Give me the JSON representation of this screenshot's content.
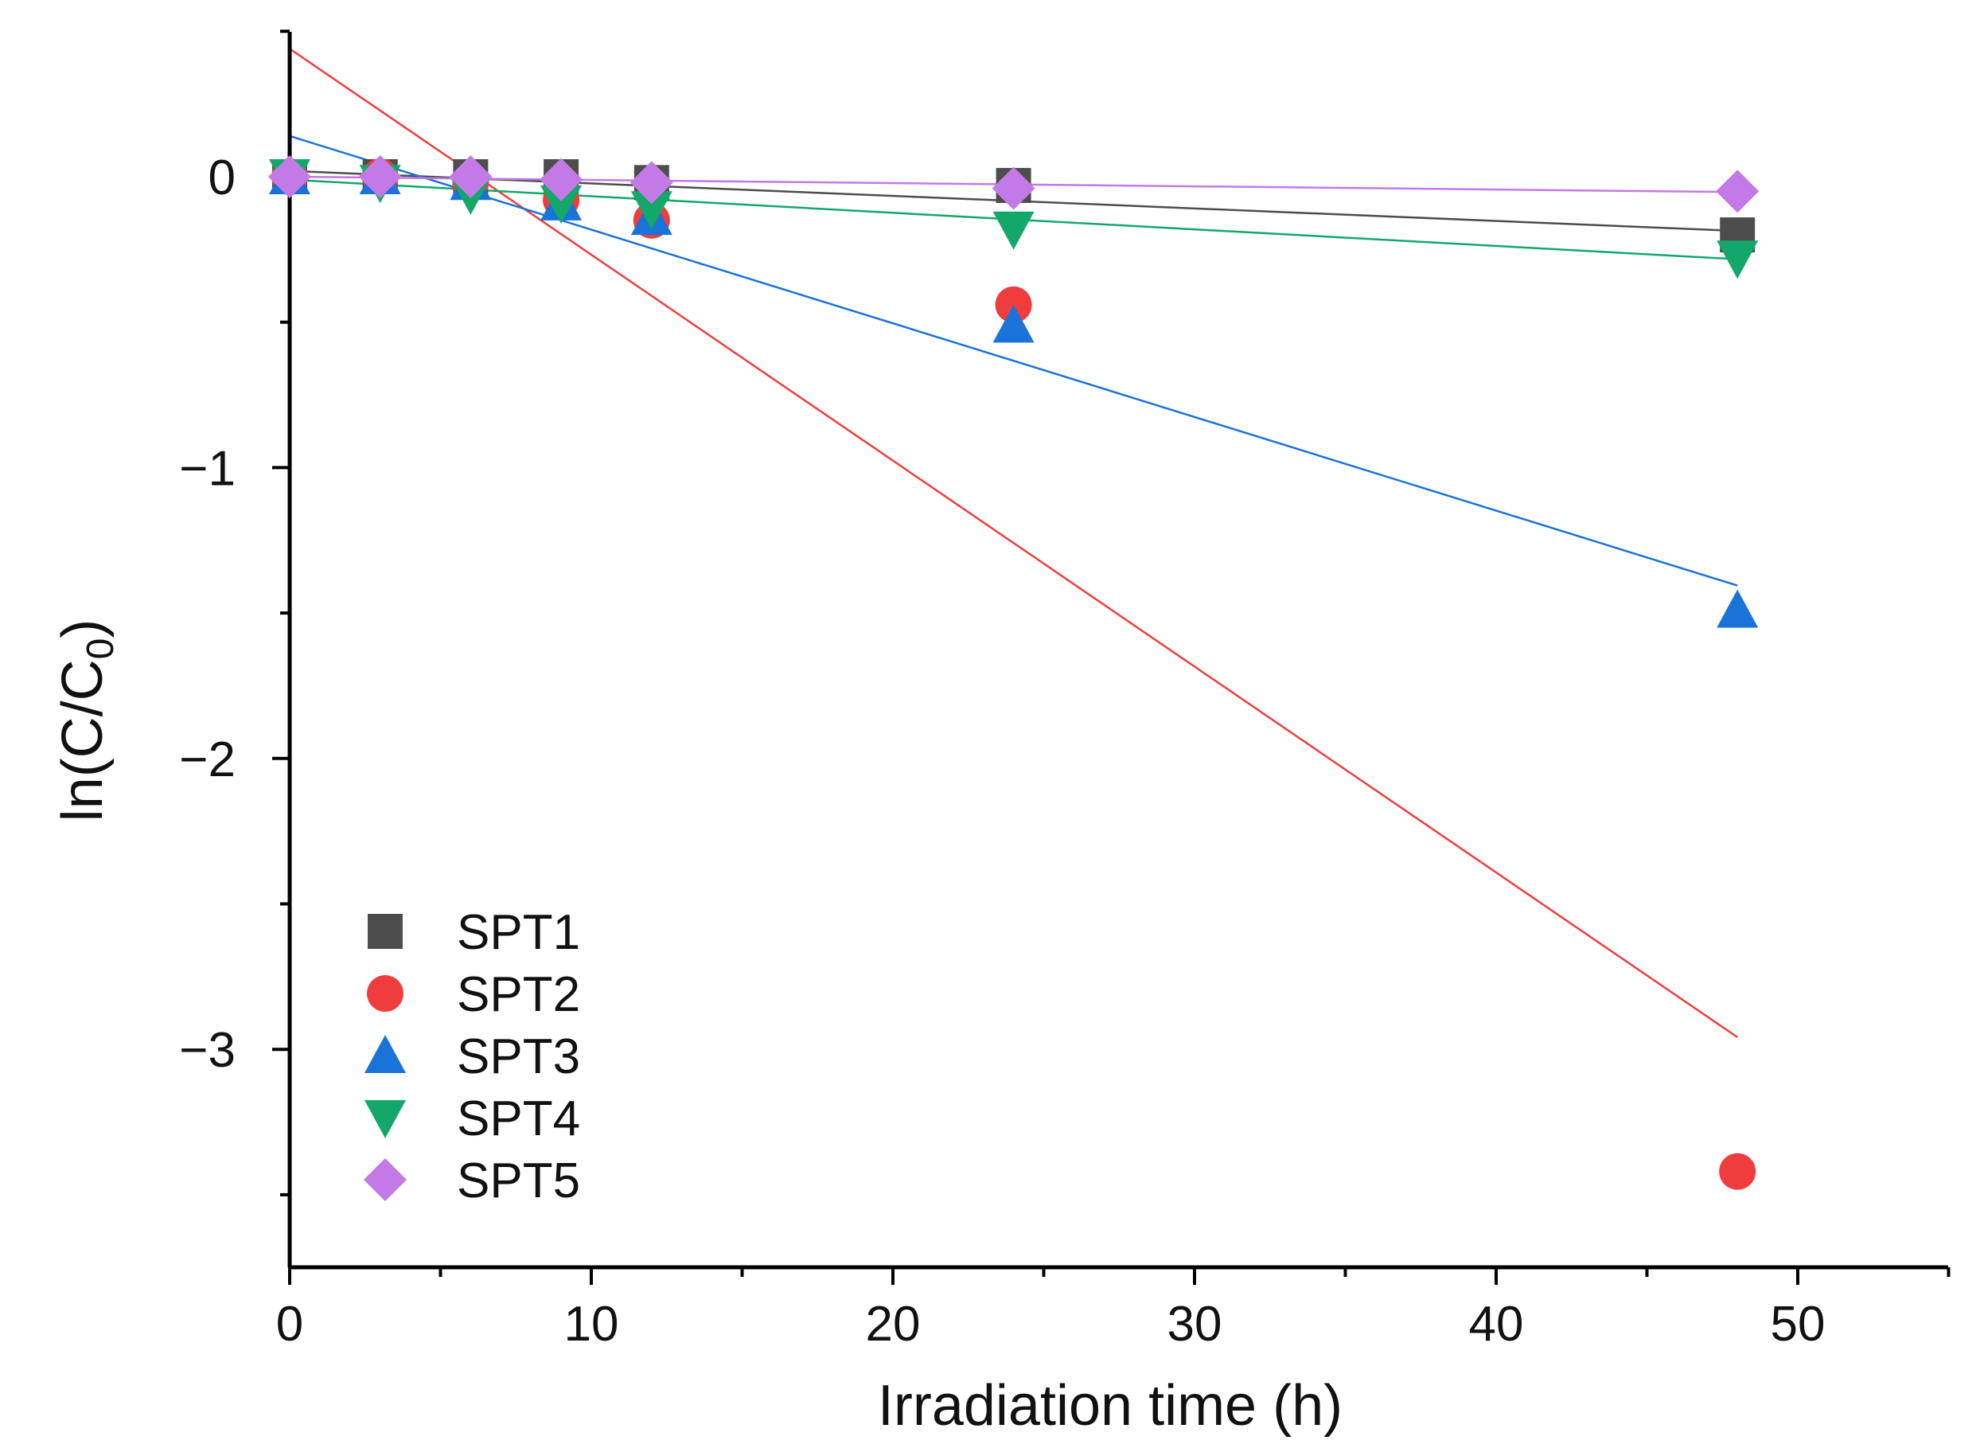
{
  "chart_data": {
    "type": "scatter",
    "title": "",
    "xlabel": "Irradiation time (h)",
    "ylabel": "ln(C/C0)",
    "ylabel_parts": {
      "main": "ln(C/C",
      "sub": "0",
      "close": ")"
    },
    "xlim": [
      0,
      55
    ],
    "ylim": [
      -3.75,
      0.5
    ],
    "xticks": [
      0,
      10,
      20,
      30,
      40,
      50
    ],
    "xtick_labels": [
      "0",
      "10",
      "20",
      "30",
      "40",
      "50"
    ],
    "yticks": [
      0,
      -1,
      -2,
      -3
    ],
    "ytick_labels": [
      "0",
      "−1",
      "−2",
      "−3"
    ],
    "grid": false,
    "legend_position": "bottom-left",
    "series": [
      {
        "name": "SPT1",
        "marker": "square",
        "color": "#4d4d4d",
        "x": [
          0,
          3,
          6,
          9,
          12,
          24,
          48
        ],
        "y": [
          0,
          0,
          0,
          0,
          -0.02,
          -0.03,
          -0.2
        ],
        "fit": {
          "slope": -0.0043,
          "intercept": 0.02
        }
      },
      {
        "name": "SPT2",
        "marker": "circle",
        "color": "#f03c3c",
        "x": [
          0,
          3,
          6,
          9,
          12,
          24,
          48
        ],
        "y": [
          0,
          0,
          -0.02,
          -0.08,
          -0.15,
          -0.44,
          -3.42
        ],
        "fit": {
          "slope": -0.0708,
          "intercept": 0.44
        }
      },
      {
        "name": "SPT3",
        "marker": "triangle-up",
        "color": "#1a73d9",
        "x": [
          0,
          3,
          6,
          9,
          12,
          24,
          48
        ],
        "y": [
          0,
          0,
          -0.02,
          -0.09,
          -0.14,
          -0.51,
          -1.49
        ],
        "fit": {
          "slope": -0.0322,
          "intercept": 0.14
        }
      },
      {
        "name": "SPT4",
        "marker": "triangle-down",
        "color": "#13a86a",
        "x": [
          0,
          3,
          6,
          9,
          12,
          24,
          48
        ],
        "y": [
          0,
          -0.02,
          -0.06,
          -0.09,
          -0.11,
          -0.18,
          -0.28
        ],
        "fit": {
          "slope": -0.0057,
          "intercept": -0.01
        }
      },
      {
        "name": "SPT5",
        "marker": "diamond",
        "color": "#c379e6",
        "x": [
          0,
          3,
          6,
          9,
          12,
          24,
          48
        ],
        "y": [
          0,
          0,
          0,
          -0.01,
          -0.02,
          -0.04,
          -0.05
        ],
        "fit": {
          "slope": -0.0011,
          "intercept": 0.0
        }
      }
    ]
  }
}
